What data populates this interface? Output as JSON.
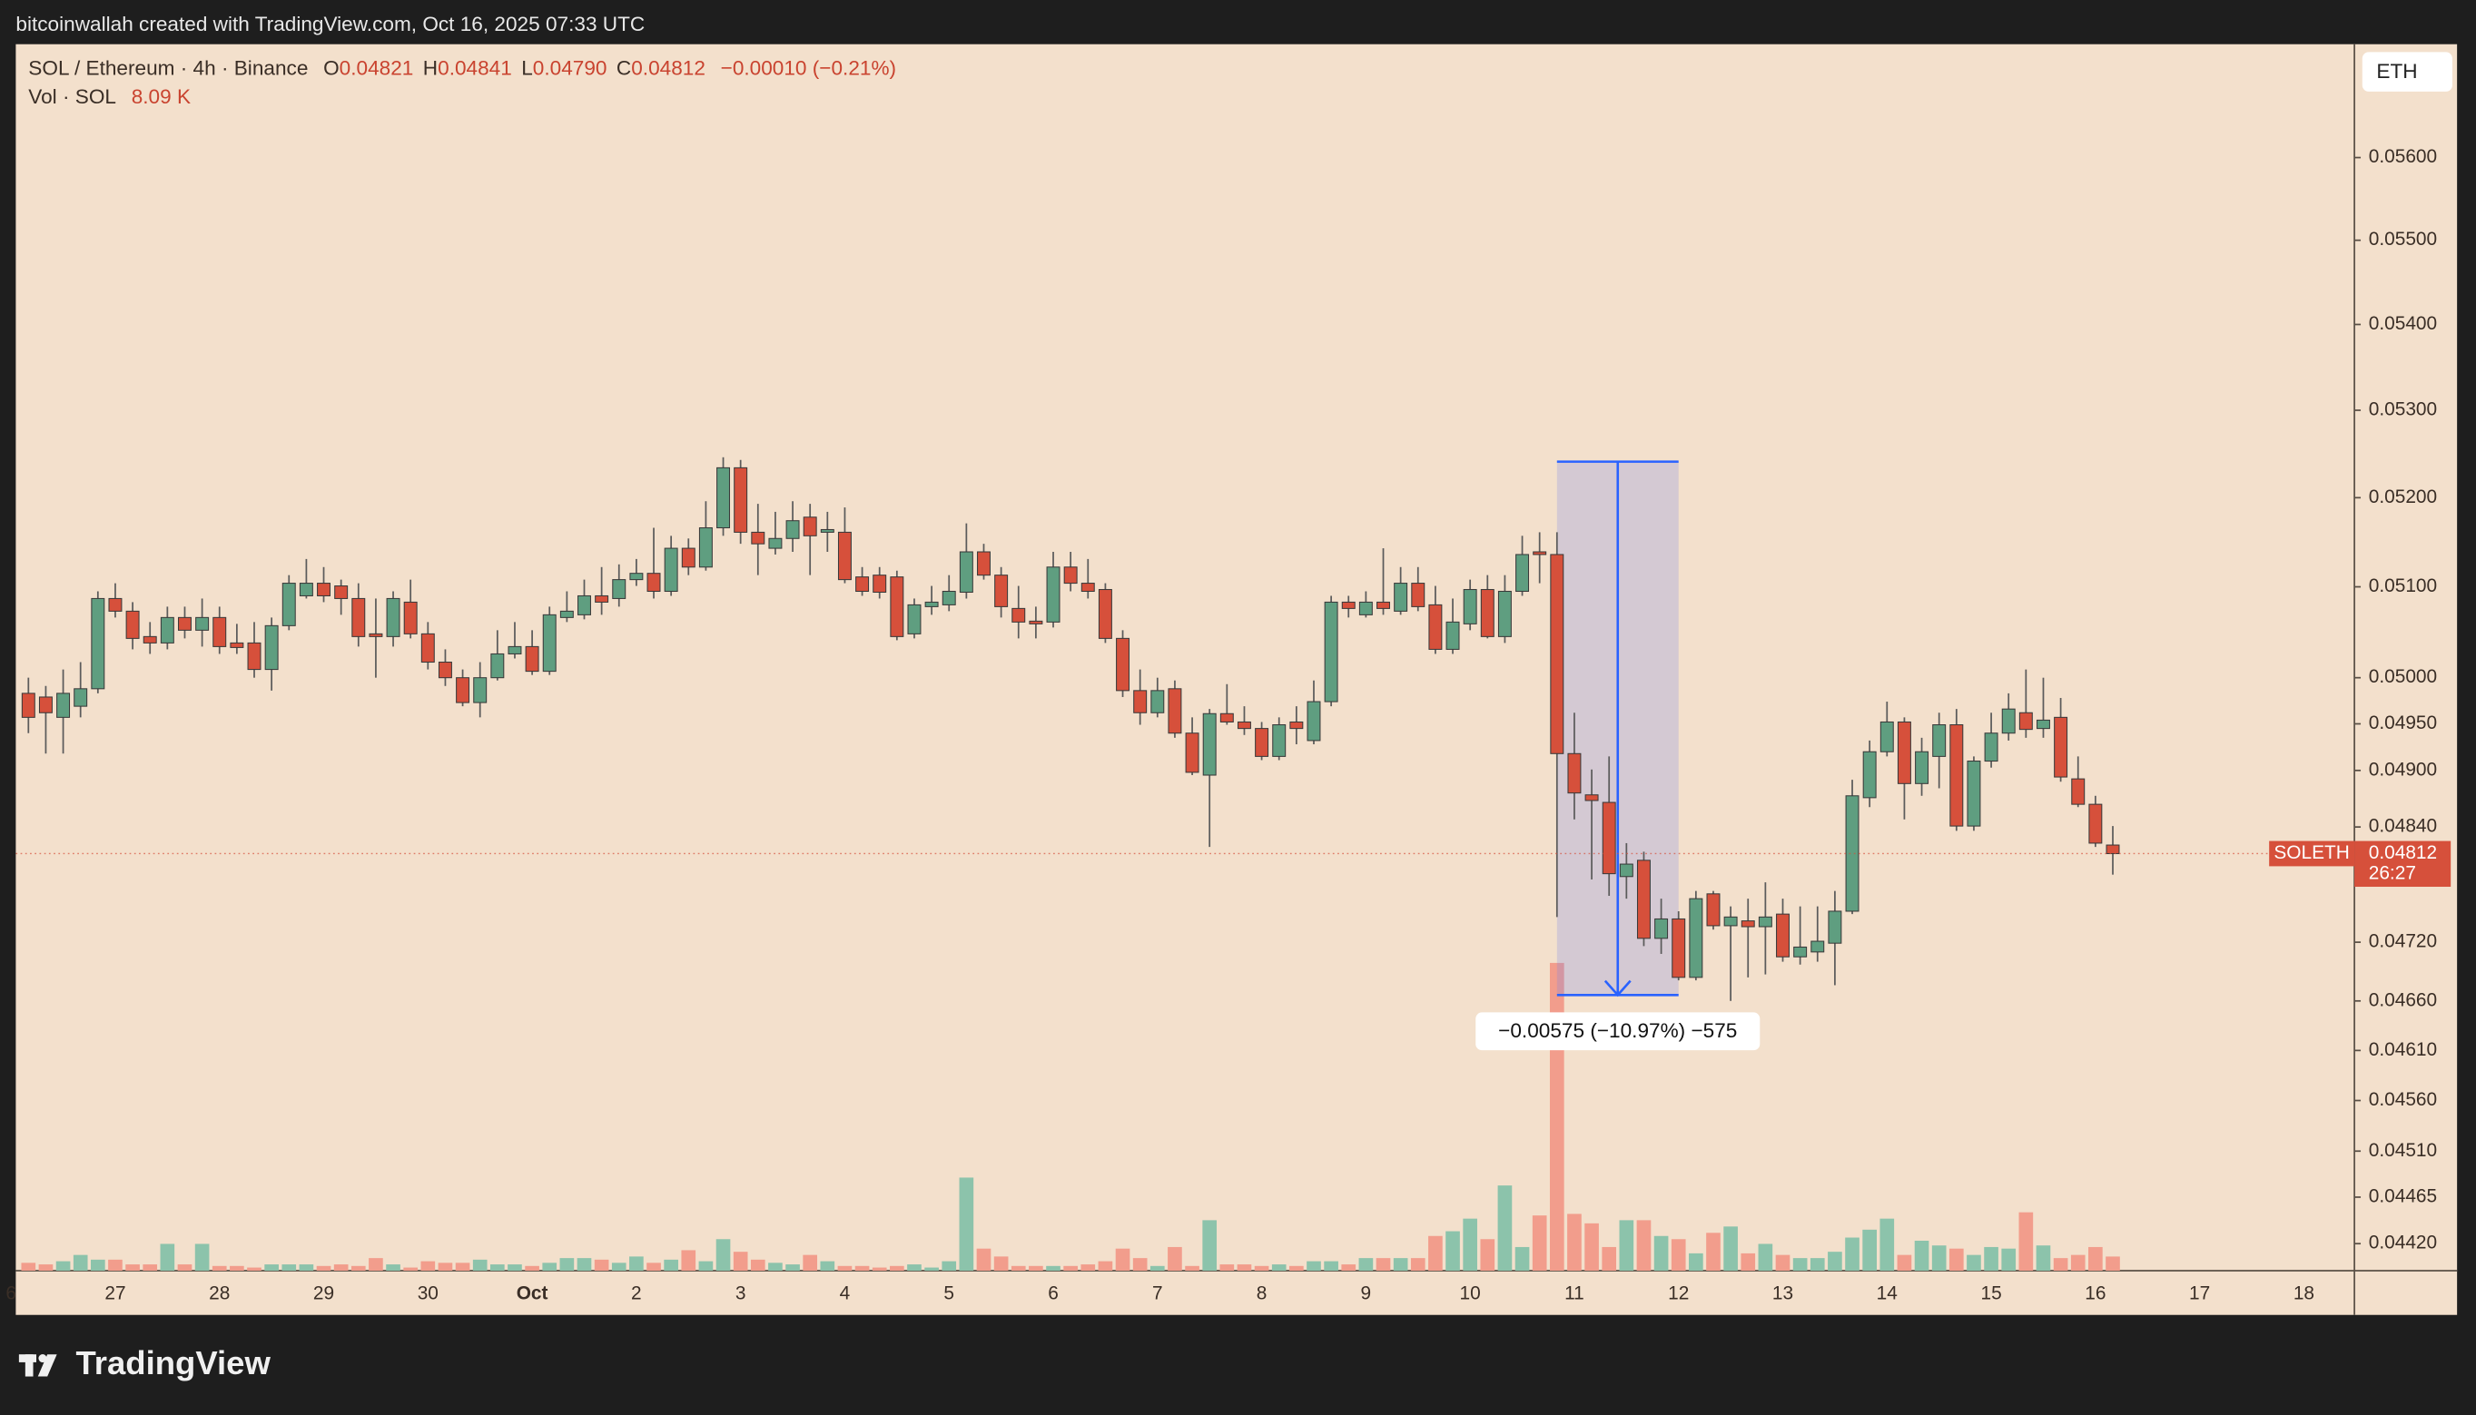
{
  "header": {
    "attribution": "bitcoinwallah created with TradingView.com, Oct 16, 2025 07:33 UTC",
    "brand": "TradingView",
    "currency_button": "ETH"
  },
  "chart_data": {
    "type": "candlestick",
    "title": "SOL / Ethereum · 4h · Binance",
    "ohlc_legend": [
      {
        "key": "O",
        "value": "0.04821"
      },
      {
        "key": "H",
        "value": "0.04841"
      },
      {
        "key": "L",
        "value": "0.04790"
      },
      {
        "key": "C",
        "value": "0.04812"
      }
    ],
    "change": "−0.00010 (−0.21%)",
    "volume_title": "Vol · SOL",
    "volume_value": "8.09 K",
    "log_scale": true,
    "grid": false,
    "up_color": "#5f9e80",
    "down_color": "#d6503b",
    "up_volume_color": "#8cc3ab",
    "down_volume_color": "#f29d8c",
    "ylim": [
      0.04394,
      0.0574
    ],
    "yticks": [
      {
        "value": 0.056,
        "label": "0.05600"
      },
      {
        "value": 0.055,
        "label": "0.05500"
      },
      {
        "value": 0.054,
        "label": "0.05400"
      },
      {
        "value": 0.053,
        "label": "0.05300"
      },
      {
        "value": 0.052,
        "label": "0.05200"
      },
      {
        "value": 0.051,
        "label": "0.05100"
      },
      {
        "value": 0.05,
        "label": "0.05000"
      },
      {
        "value": 0.0495,
        "label": "0.04950"
      },
      {
        "value": 0.049,
        "label": "0.04900"
      },
      {
        "value": 0.0484,
        "label": "0.04840"
      },
      {
        "value": 0.0472,
        "label": "0.04720"
      },
      {
        "value": 0.0466,
        "label": "0.04660"
      },
      {
        "value": 0.0461,
        "label": "0.04610"
      },
      {
        "value": 0.0456,
        "label": "0.04560"
      },
      {
        "value": 0.0451,
        "label": "0.04510"
      },
      0.04465,
      {
        "value": 0.0442,
        "label": "0.04420"
      }
    ],
    "categories": [
      "6",
      null,
      null,
      null,
      null,
      null,
      "27",
      null,
      null,
      null,
      null,
      null,
      "28",
      null,
      null,
      null,
      null,
      null,
      "29",
      null,
      null,
      null,
      null,
      null,
      "30",
      null,
      null,
      null,
      null,
      null,
      "Oct",
      null,
      null,
      null,
      null,
      null,
      "2",
      null,
      null,
      null,
      null,
      null,
      "3",
      null,
      null,
      null,
      null,
      null,
      "4",
      null,
      null,
      null,
      null,
      null,
      "5",
      null,
      null,
      null,
      null,
      null,
      "6",
      null,
      null,
      null,
      null,
      null,
      "7",
      null,
      null,
      null,
      null,
      null,
      "8",
      null,
      null,
      null,
      null,
      null,
      "9",
      null,
      null,
      null,
      null,
      null,
      "10",
      null,
      null,
      null,
      null,
      null,
      "11",
      null,
      null,
      null,
      null,
      null,
      "12",
      null,
      null,
      null,
      null,
      null,
      "13",
      null,
      null,
      null,
      null,
      null,
      "14",
      null,
      null,
      null,
      null,
      null,
      "15",
      null,
      null,
      null,
      null,
      null,
      "16",
      null,
      null,
      null,
      null,
      null,
      "17",
      null,
      null,
      null,
      null,
      null,
      "18",
      null,
      null
    ],
    "open": [
      null,
      0.04983,
      0.04979,
      0.04957,
      0.04969,
      0.04988,
      0.05087,
      0.05073,
      0.05045,
      0.05038,
      0.05066,
      0.05052,
      0.05066,
      0.05038,
      0.05038,
      0.05009,
      0.05057,
      0.0509,
      0.05104,
      0.05101,
      0.05087,
      0.05048,
      0.05045,
      0.05083,
      0.05048,
      0.05017,
      0.05,
      0.04973,
      0.05,
      0.05026,
      0.05034,
      0.05007,
      0.05066,
      0.05069,
      0.0509,
      0.05087,
      0.05108,
      0.05115,
      0.05095,
      0.05143,
      0.05122,
      0.05166,
      0.05234,
      0.05161,
      0.05143,
      0.05154,
      0.05178,
      0.05161,
      0.05161,
      0.05111,
      0.05113,
      0.05111,
      0.05048,
      0.05078,
      0.0508,
      0.05094,
      0.05139,
      0.05113,
      0.05076,
      0.05062,
      0.05061,
      0.05122,
      0.05104,
      0.05097,
      0.05043,
      0.04986,
      0.04962,
      0.04988,
      0.0494,
      0.04895,
      0.04961,
      0.04952,
      0.04945,
      0.04915,
      0.04952,
      0.04932,
      0.04974,
      0.05083,
      0.05069,
      0.05083,
      0.05073,
      0.05104,
      0.0508,
      0.05031,
      0.05059,
      0.05097,
      0.05045,
      0.05095,
      0.05139,
      0.05136,
      0.04918,
      0.04874,
      0.04866,
      0.04788,
      0.04805,
      0.04724,
      0.04744,
      0.04684,
      0.0477,
      0.04737,
      0.04742,
      0.04736,
      0.04749,
      0.04705,
      0.0471,
      0.04719,
      0.04752,
      0.04871,
      0.0492,
      0.04952,
      0.04886,
      0.04915,
      0.04949,
      0.04841,
      0.0491,
      0.0494,
      0.04962,
      0.04945,
      0.04957,
      0.04891,
      0.04864,
      0.04821,
      null,
      null,
      null,
      null,
      null,
      null,
      null,
      null,
      null,
      null,
      null,
      null,
      null
    ],
    "high": [
      null,
      0.05,
      0.04991,
      0.05009,
      0.05017,
      0.05095,
      0.05104,
      0.05083,
      0.05061,
      0.05078,
      0.05078,
      0.05087,
      0.05078,
      0.05059,
      0.05061,
      0.05066,
      0.05113,
      0.05131,
      0.05122,
      0.05108,
      0.05104,
      0.05087,
      0.05095,
      0.05108,
      0.05061,
      0.05031,
      0.05009,
      0.05017,
      0.05052,
      0.05061,
      0.05052,
      0.05078,
      0.05095,
      0.05108,
      0.05122,
      0.05125,
      0.05131,
      0.05166,
      0.05157,
      0.05154,
      0.05196,
      0.05246,
      0.05243,
      0.05193,
      0.05184,
      0.05196,
      0.05193,
      0.05184,
      0.05189,
      0.05122,
      0.05122,
      0.05118,
      0.05087,
      0.05101,
      0.05113,
      0.05171,
      0.05148,
      0.05122,
      0.05101,
      0.05078,
      0.05139,
      0.05139,
      0.05131,
      0.05104,
      0.05052,
      0.05009,
      0.05,
      0.04997,
      0.04957,
      0.04966,
      0.04993,
      0.04969,
      0.04952,
      0.04957,
      0.04969,
      0.04997,
      0.0509,
      0.0509,
      0.05095,
      0.05143,
      0.05122,
      0.05122,
      0.05101,
      0.05087,
      0.05108,
      0.05113,
      0.05113,
      0.05157,
      0.05161,
      0.05161,
      0.04962,
      0.04901,
      0.04915,
      0.04823,
      0.04814,
      0.04765,
      0.04752,
      0.04773,
      0.04773,
      0.04757,
      0.04765,
      0.04782,
      0.04765,
      0.04757,
      0.04757,
      0.04773,
      0.0489,
      0.04932,
      0.04974,
      0.04957,
      0.04935,
      0.04962,
      0.04966,
      0.04915,
      0.04962,
      0.04983,
      0.05009,
      0.05,
      0.04978,
      0.04915,
      0.04873,
      0.04841,
      null,
      null,
      null,
      null,
      null,
      null,
      null,
      null,
      null,
      null,
      null,
      null,
      null
    ],
    "low": [
      null,
      0.0494,
      0.04918,
      0.04918,
      0.04957,
      0.04983,
      0.05066,
      0.05031,
      0.05026,
      0.05031,
      0.05043,
      0.05034,
      0.05026,
      0.05026,
      0.05,
      0.04986,
      0.05052,
      0.05087,
      0.05083,
      0.05069,
      0.05034,
      0.05,
      0.05034,
      0.05043,
      0.05009,
      0.04991,
      0.04969,
      0.04957,
      0.04997,
      0.05021,
      0.05003,
      0.05003,
      0.05061,
      0.05064,
      0.05069,
      0.05078,
      0.05101,
      0.05087,
      0.0509,
      0.05113,
      0.05118,
      0.05157,
      0.05148,
      0.05113,
      0.05136,
      0.05139,
      0.05113,
      0.05139,
      0.05104,
      0.0509,
      0.05087,
      0.05041,
      0.05043,
      0.05069,
      0.05073,
      0.05087,
      0.05108,
      0.05066,
      0.05043,
      0.05043,
      0.05055,
      0.05095,
      0.05087,
      0.05038,
      0.04979,
      0.04949,
      0.04957,
      0.04935,
      0.04895,
      0.04819,
      0.04949,
      0.04938,
      0.04911,
      0.04911,
      0.04928,
      0.04928,
      0.04969,
      0.05066,
      0.05066,
      0.05069,
      0.05069,
      0.05073,
      0.05026,
      0.05026,
      0.05052,
      0.05043,
      0.05038,
      0.0509,
      0.05104,
      0.04746,
      0.04848,
      0.04785,
      0.04768,
      0.04765,
      0.04716,
      0.04708,
      0.04681,
      0.04681,
      0.04733,
      0.0466,
      0.04684,
      0.04687,
      0.047,
      0.04697,
      0.047,
      0.04676,
      0.04749,
      0.04861,
      0.04915,
      0.04848,
      0.04873,
      0.04881,
      0.04836,
      0.04836,
      0.04903,
      0.04932,
      0.04935,
      0.04935,
      0.04888,
      0.04861,
      0.04819,
      0.0479,
      null,
      null,
      null,
      null,
      null,
      null,
      null,
      null,
      null,
      null,
      null,
      null,
      null
    ],
    "close": [
      null,
      0.04957,
      0.04962,
      0.04983,
      0.04988,
      0.05087,
      0.05073,
      0.05043,
      0.05038,
      0.05066,
      0.05052,
      0.05066,
      0.05034,
      0.05033,
      0.05009,
      0.05057,
      0.05104,
      0.05104,
      0.0509,
      0.05087,
      0.05045,
      0.05045,
      0.05087,
      0.05048,
      0.05017,
      0.05,
      0.04973,
      0.05,
      0.05026,
      0.05034,
      0.05007,
      0.05069,
      0.05073,
      0.0509,
      0.05083,
      0.05108,
      0.05115,
      0.05095,
      0.05143,
      0.05122,
      0.05166,
      0.05234,
      0.05161,
      0.05148,
      0.05154,
      0.05174,
      0.05157,
      0.05164,
      0.05108,
      0.05095,
      0.05094,
      0.05045,
      0.0508,
      0.05083,
      0.05095,
      0.05139,
      0.05113,
      0.05078,
      0.05061,
      0.05059,
      0.05122,
      0.05104,
      0.05095,
      0.05043,
      0.04986,
      0.04962,
      0.04986,
      0.0494,
      0.04898,
      0.04961,
      0.04952,
      0.04945,
      0.04915,
      0.04949,
      0.04945,
      0.04974,
      0.05083,
      0.05076,
      0.05083,
      0.05076,
      0.05104,
      0.05078,
      0.05031,
      0.05061,
      0.05097,
      0.05045,
      0.05095,
      0.05136,
      0.05136,
      0.04918,
      0.04876,
      0.04868,
      0.04791,
      0.04801,
      0.04724,
      0.04744,
      0.04684,
      0.04765,
      0.04737,
      0.04746,
      0.04736,
      0.04746,
      0.04705,
      0.04715,
      0.04721,
      0.04752,
      0.04873,
      0.0492,
      0.04952,
      0.04886,
      0.0492,
      0.04949,
      0.04841,
      0.0491,
      0.0494,
      0.04966,
      0.04944,
      0.04954,
      0.04893,
      0.04864,
      0.04823,
      0.04812,
      null,
      null,
      null,
      null,
      null,
      null,
      null,
      null,
      null,
      null,
      null,
      null,
      null
    ],
    "volume": [
      null,
      4.5,
      3.6,
      5.4,
      9,
      6.3,
      6.3,
      3.6,
      3.6,
      15.3,
      3.6,
      15.3,
      2.7,
      2.7,
      1.8,
      3.6,
      3.6,
      3.6,
      2.7,
      3.6,
      2.7,
      7.2,
      3.6,
      1.8,
      5.4,
      4.5,
      4.5,
      6.3,
      3.6,
      3.6,
      2.7,
      4.5,
      7.2,
      7.2,
      6.3,
      4.5,
      8.1,
      4.5,
      6.3,
      11.7,
      5.4,
      18,
      10.8,
      6.3,
      4.5,
      3.6,
      9,
      5.4,
      2.7,
      2.7,
      1.8,
      2.7,
      3.6,
      1.8,
      5.4,
      53.1,
      12.6,
      8.1,
      2.7,
      2.7,
      2.7,
      2.7,
      3.6,
      5.4,
      12.6,
      7.2,
      2.7,
      13.5,
      2.7,
      28.8,
      3.6,
      3.6,
      2.7,
      3.6,
      2.7,
      5.4,
      5.4,
      3.6,
      7.2,
      7.2,
      7.2,
      7.2,
      19.8,
      22.5,
      29.7,
      18,
      48.6,
      13.5,
      31.5,
      175.5,
      32.4,
      27,
      13.5,
      28.8,
      28.8,
      19.8,
      18,
      9.9,
      21.6,
      25.2,
      9.9,
      15.3,
      9,
      7.2,
      7.2,
      10.8,
      18.9,
      23.4,
      29.7,
      9,
      17.1,
      14.4,
      12.6,
      9,
      13.5,
      12.6,
      33.3,
      14.4,
      7.2,
      9,
      13.5,
      8.09,
      null,
      null,
      null,
      null,
      null,
      null,
      null,
      null,
      null,
      null,
      null,
      null,
      null
    ],
    "last_price": {
      "symbol": "SOLETH",
      "countdown": "26:27"
    },
    "measure": {
      "x_from": 89,
      "x_to": 96,
      "from": 0.05241,
      "to": 0.04666,
      "label": "−0.00575 (−10.97%) −575"
    }
  }
}
